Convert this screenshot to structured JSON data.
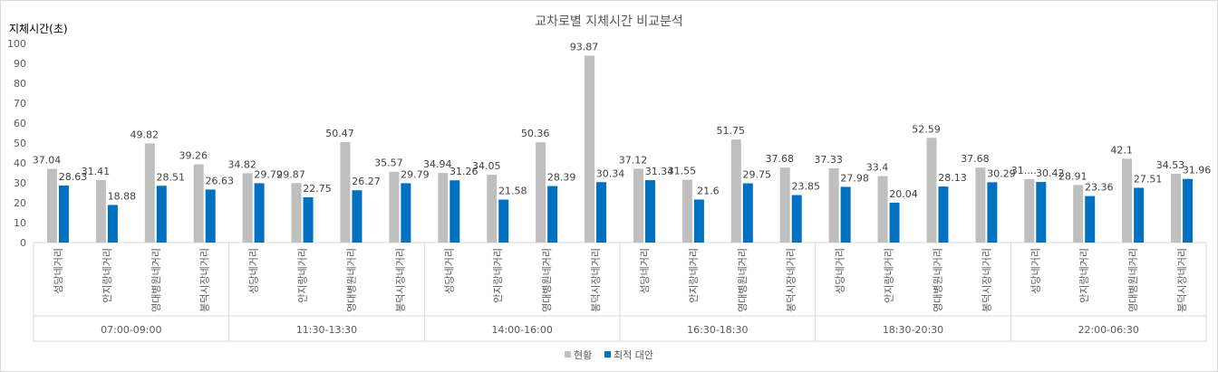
{
  "chart_data": {
    "type": "bar",
    "title": "교차로별 지체시간 비교분석",
    "ylabel": "지체시간(초)",
    "xlabel": "",
    "ylim": [
      0,
      100
    ],
    "yticks": [
      0,
      10,
      20,
      30,
      40,
      50,
      60,
      70,
      80,
      90,
      100
    ],
    "grid": false,
    "legend_position": "bottom",
    "groups": [
      {
        "label": "07:00-09:00",
        "categories": [
          "성당네거리",
          "안지랑네거리",
          "영대병원네거리",
          "봉덕시장네거리"
        ]
      },
      {
        "label": "11:30-13:30",
        "categories": [
          "성당네거리",
          "안지랑네거리",
          "영대병원네거리",
          "봉덕시장네거리"
        ]
      },
      {
        "label": "14:00-16:00",
        "categories": [
          "성당네거리",
          "안지랑네거리",
          "영대병원네거리",
          "봉덕시장네거리"
        ]
      },
      {
        "label": "16:30-18:30",
        "categories": [
          "성당네거리",
          "안지랑네거리",
          "영대병원네거리",
          "봉덕시장네거리"
        ]
      },
      {
        "label": "18:30-20:30",
        "categories": [
          "성당네거리",
          "안지랑네거리",
          "영대병원네거리",
          "봉덕시장네거리"
        ]
      },
      {
        "label": "22:00-06:30",
        "categories": [
          "성당네거리",
          "안지랑네거리",
          "영대병원네거리",
          "봉덕시장네거리"
        ]
      }
    ],
    "series": [
      {
        "name": "현황",
        "color": "#bfbfbf",
        "values": [
          37.04,
          31.41,
          49.82,
          39.26,
          34.82,
          29.87,
          50.47,
          35.57,
          34.94,
          34.05,
          50.36,
          93.87,
          37.12,
          31.55,
          51.75,
          37.68,
          37.33,
          33.4,
          52.59,
          37.68,
          31.9,
          28.91,
          42.1,
          34.53
        ],
        "labels": [
          "37.04",
          "31.41",
          "49.82",
          "39.26",
          "34.82",
          "29.87",
          "50.47",
          "35.57",
          "34.94",
          "34.05",
          "50.36",
          "93.87",
          "37.12",
          "31.55",
          "51.75",
          "37.68",
          "37.33",
          "33.4",
          "52.59",
          "37.68",
          "31....",
          "28.91",
          "42.1",
          "34.53"
        ]
      },
      {
        "name": "최적 대안",
        "color": "#0070c0",
        "values": [
          28.63,
          18.88,
          28.51,
          26.63,
          29.79,
          22.75,
          26.27,
          29.79,
          31.26,
          21.58,
          28.39,
          30.34,
          31.34,
          21.6,
          29.75,
          23.85,
          27.98,
          20.04,
          28.13,
          30.29,
          30.42,
          23.36,
          27.51,
          31.96
        ],
        "labels": [
          "28.63",
          "18.88",
          "28.51",
          "26.63",
          "29.79",
          "22.75",
          "26.27",
          "29.79",
          "31.26",
          "21.58",
          "28.39",
          "30.34",
          "31.34",
          "21.6",
          "29.75",
          "23.85",
          "27.98",
          "20.04",
          "28.13",
          "30.29",
          "30.42",
          "23.36",
          "27.51",
          "31.96"
        ]
      }
    ]
  }
}
